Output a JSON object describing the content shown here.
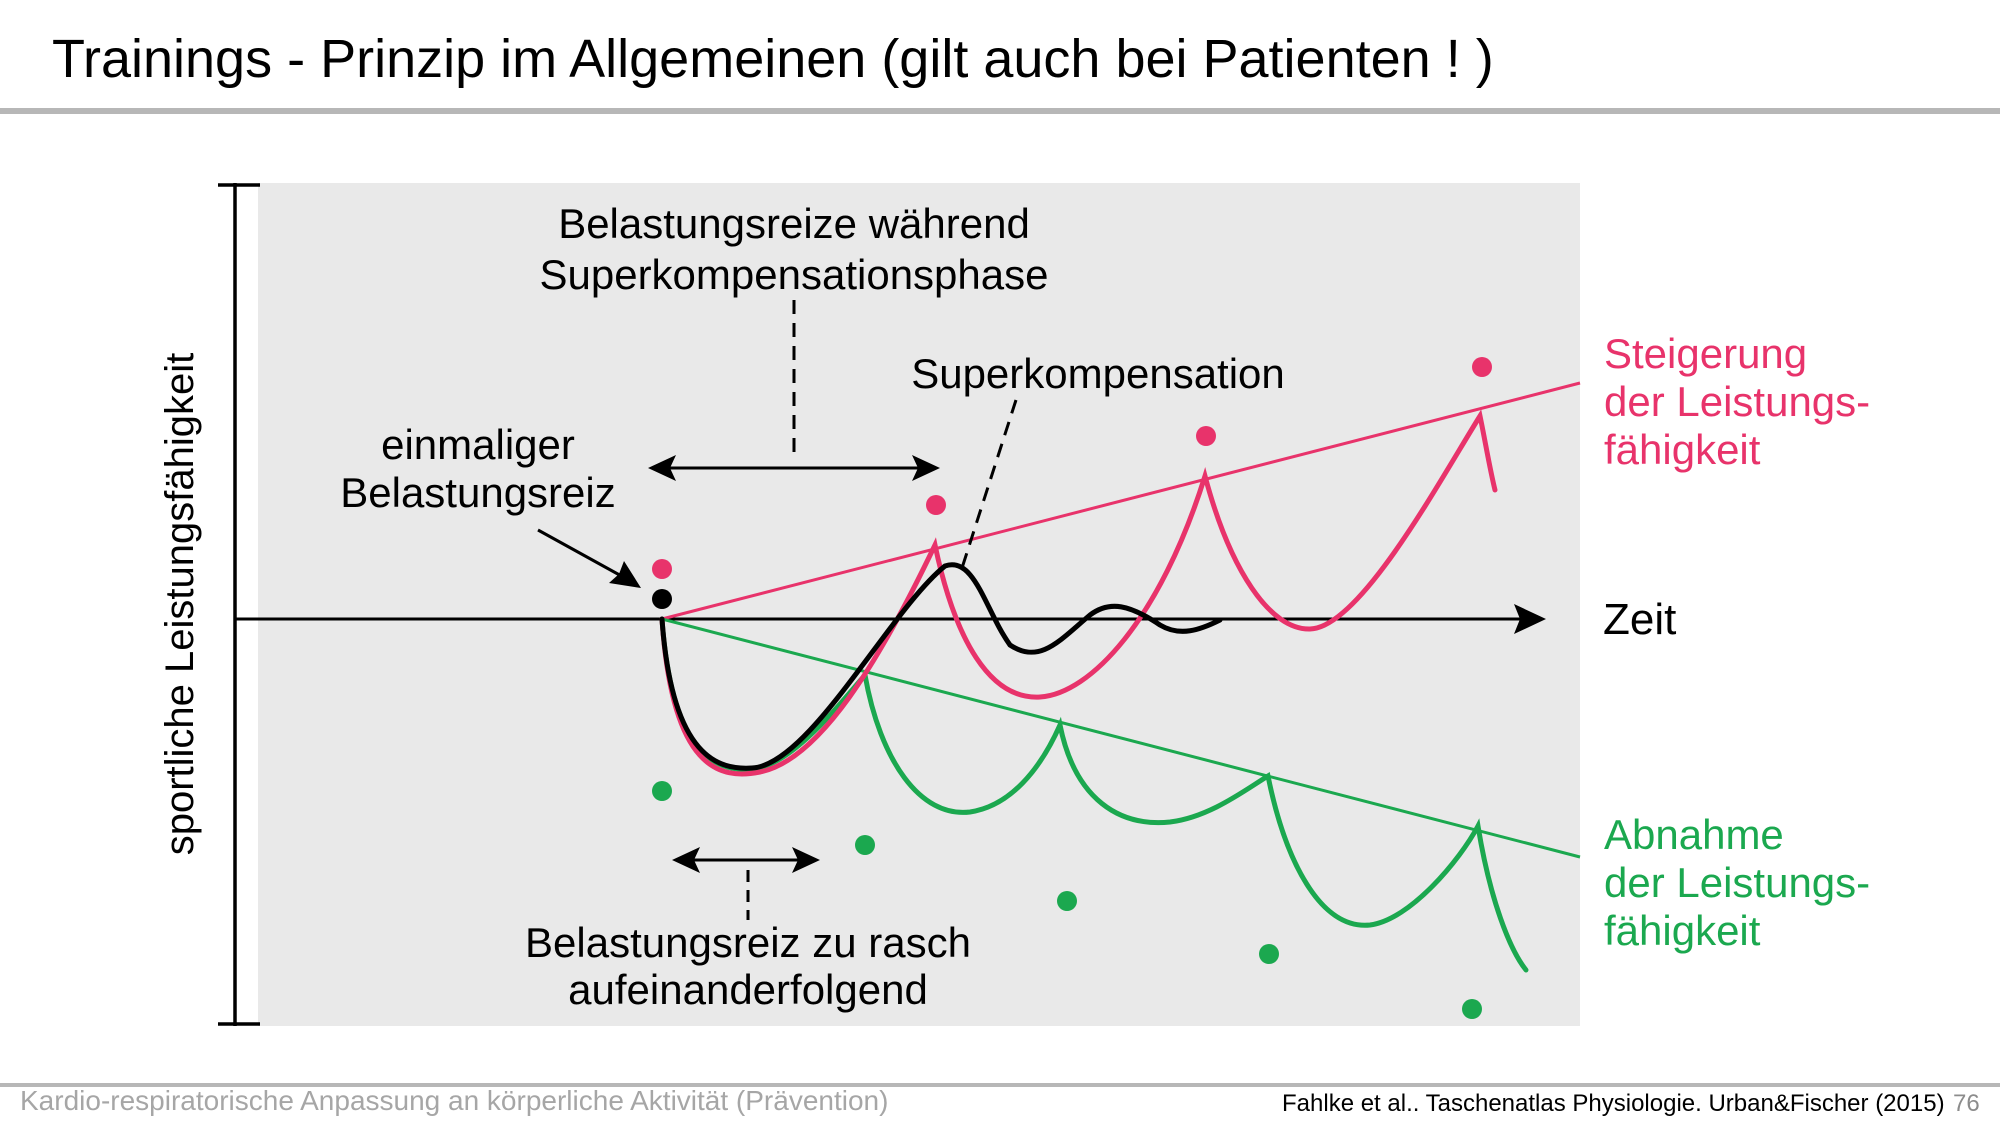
{
  "slide": {
    "title": "Trainings - Prinzip im Allgemeinen (gilt auch bei Patienten ! )",
    "footer_left": "Kardio-respiratorische Anpassung an körperliche Aktivität (Prävention)",
    "footer_citation": "Fahlke et al.. Taschenatlas Physiologie. Urban&Fischer (2015)",
    "page_number": "76"
  },
  "diagram": {
    "y_axis_label": "sportliche Leistungsfähigkeit",
    "x_axis_label": "Zeit",
    "annotation_top_line1": "Belastungsreize während",
    "annotation_top_line2": "Superkompensationsphase",
    "annotation_superkompensation": "Superkompensation",
    "annotation_single_line1": "einmaliger",
    "annotation_single_line2": "Belastungsreiz",
    "annotation_bottom_line1": "Belastungsreiz zu rasch",
    "annotation_bottom_line2": "aufeinanderfolgend",
    "legend_increase_line1": "Steigerung",
    "legend_increase_line2": "der Leistungs-",
    "legend_increase_line3": "fähigkeit",
    "legend_decrease_line1": "Abnahme",
    "legend_decrease_line2": "der Leistungs-",
    "legend_decrease_line3": "fähigkeit",
    "colors": {
      "increase": "#e8336b",
      "decrease": "#1ba84f",
      "single": "#000000",
      "panel": "#e9e9e9"
    }
  }
}
